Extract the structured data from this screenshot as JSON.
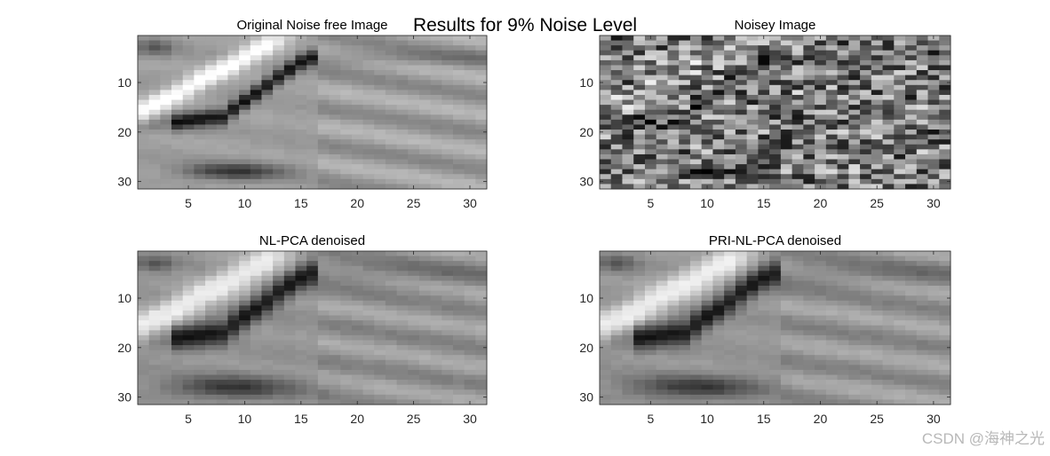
{
  "figure": {
    "suptitle": "Results for 9% Noise Level",
    "watermark": "CSDN @海神之光"
  },
  "chart_data": [
    {
      "type": "heatmap",
      "colormap": "gray",
      "title": "Original Noise free Image",
      "xticks": [
        5,
        10,
        15,
        20,
        25,
        30
      ],
      "yticks": [
        10,
        20,
        30
      ],
      "xlim": [
        0.5,
        31.5
      ],
      "ylim": [
        0.5,
        31.5
      ],
      "y_direction": "reverse",
      "grid": false,
      "size": [
        31,
        31
      ],
      "content": "clean"
    },
    {
      "type": "heatmap",
      "colormap": "gray",
      "title": "Noisey Image",
      "xticks": [
        5,
        10,
        15,
        20,
        25,
        30
      ],
      "yticks": [
        10,
        20,
        30
      ],
      "xlim": [
        0.5,
        31.5
      ],
      "ylim": [
        0.5,
        31.5
      ],
      "y_direction": "reverse",
      "grid": false,
      "size": [
        31,
        31
      ],
      "content": "noisy"
    },
    {
      "type": "heatmap",
      "colormap": "gray",
      "title": "NL-PCA denoised",
      "xticks": [
        5,
        10,
        15,
        20,
        25,
        30
      ],
      "yticks": [
        10,
        20,
        30
      ],
      "xlim": [
        0.5,
        31.5
      ],
      "ylim": [
        0.5,
        31.5
      ],
      "y_direction": "reverse",
      "grid": false,
      "size": [
        31,
        31
      ],
      "content": "denoised"
    },
    {
      "type": "heatmap",
      "colormap": "gray",
      "title": "PRI-NL-PCA denoised",
      "xticks": [
        5,
        10,
        15,
        20,
        25,
        30
      ],
      "yticks": [
        10,
        20,
        30
      ],
      "xlim": [
        0.5,
        31.5
      ],
      "ylim": [
        0.5,
        31.5
      ],
      "y_direction": "reverse",
      "grid": false,
      "size": [
        31,
        31
      ],
      "content": "denoised"
    }
  ]
}
